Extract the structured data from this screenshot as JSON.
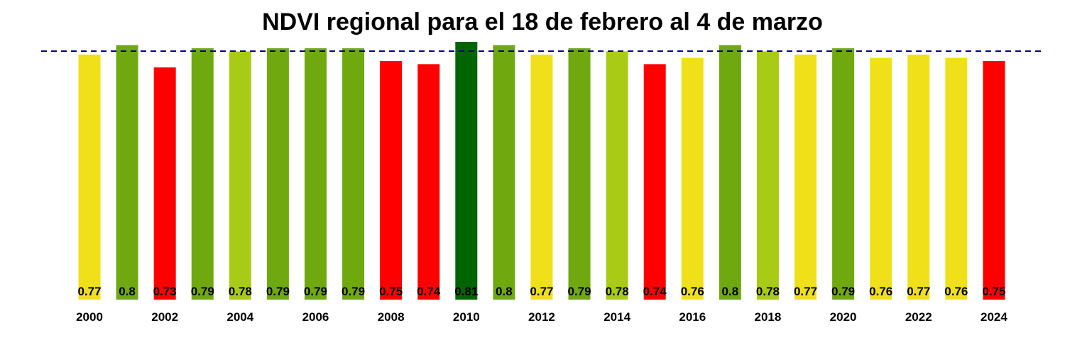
{
  "chart_data": {
    "type": "bar",
    "title": "NDVI regional para el 18 de febrero al 4 de marzo",
    "xlabel": "",
    "ylabel": "",
    "categories": [
      "2000",
      "2001",
      "2002",
      "2003",
      "2004",
      "2005",
      "2006",
      "2007",
      "2008",
      "2009",
      "2010",
      "2011",
      "2012",
      "2013",
      "2014",
      "2015",
      "2016",
      "2017",
      "2018",
      "2019",
      "2020",
      "2021",
      "2022",
      "2023",
      "2024"
    ],
    "x_tick_labels": [
      "2000",
      "2002",
      "2004",
      "2006",
      "2008",
      "2010",
      "2012",
      "2014",
      "2016",
      "2018",
      "2020",
      "2022",
      "2024"
    ],
    "values": [
      0.77,
      0.8,
      0.73,
      0.79,
      0.78,
      0.79,
      0.79,
      0.79,
      0.75,
      0.74,
      0.81,
      0.8,
      0.77,
      0.79,
      0.78,
      0.74,
      0.76,
      0.8,
      0.78,
      0.77,
      0.79,
      0.76,
      0.77,
      0.76,
      0.75
    ],
    "value_labels": [
      "0.77",
      "0.8",
      "0.73",
      "0.79",
      "0.78",
      "0.79",
      "0.79",
      "0.79",
      "0.75",
      "0.74",
      "0.81",
      "0.8",
      "0.77",
      "0.79",
      "0.78",
      "0.74",
      "0.76",
      "0.8",
      "0.78",
      "0.77",
      "0.79",
      "0.76",
      "0.77",
      "0.76",
      "0.75"
    ],
    "colors": [
      "#F0E01A",
      "#6FA80F",
      "#FF0000",
      "#6FA80F",
      "#AACB16",
      "#6FA80F",
      "#6FA80F",
      "#6FA80F",
      "#FF0000",
      "#FF0000",
      "#006400",
      "#6FA80F",
      "#F0E01A",
      "#6FA80F",
      "#AACB16",
      "#FF0000",
      "#F0E01A",
      "#6FA80F",
      "#AACB16",
      "#F0E01A",
      "#6FA80F",
      "#F0E01A",
      "#F0E01A",
      "#F0E01A",
      "#FF0000"
    ],
    "reference_line": {
      "value": 0.79,
      "style": "dashed",
      "color": "#00008B"
    },
    "grid": false,
    "legend": "none"
  }
}
